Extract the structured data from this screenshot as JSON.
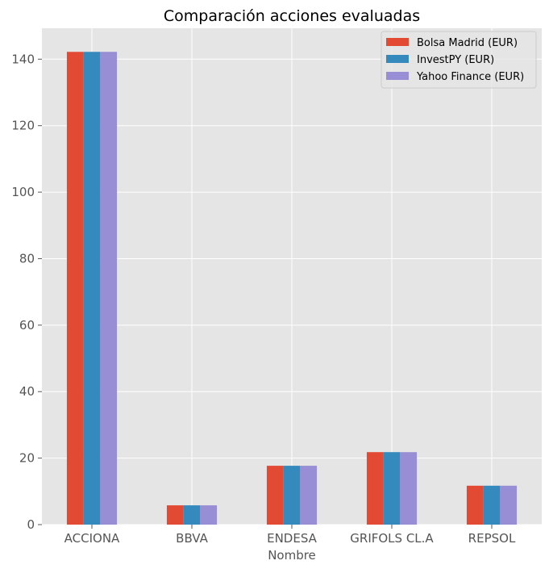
{
  "chart_data": {
    "type": "bar",
    "title": "Comparación acciones evaluadas",
    "xlabel": "Nombre",
    "ylabel": "",
    "categories": [
      "ACCIONA",
      "BBVA",
      "ENDESA",
      "GRIFOLS CL.A",
      "REPSOL"
    ],
    "series": [
      {
        "name": "Bolsa Madrid (EUR)",
        "color": "#E24A33",
        "values": [
          142.2,
          5.8,
          17.7,
          21.8,
          11.7
        ]
      },
      {
        "name": "InvestPY (EUR)",
        "color": "#348ABD",
        "values": [
          142.2,
          5.8,
          17.7,
          21.8,
          11.7
        ]
      },
      {
        "name": "Yahoo Finance (EUR)",
        "color": "#988ED5",
        "values": [
          142.2,
          5.8,
          17.7,
          21.8,
          11.7
        ]
      }
    ],
    "ylim": [
      0,
      149.3
    ],
    "yticks": [
      0,
      20,
      40,
      60,
      80,
      100,
      120,
      140
    ],
    "grid": true,
    "legend_position": "top-right",
    "style": {
      "plot_background": "#E5E5E5",
      "grid_color": "#FFFFFF",
      "tick_color": "#555555"
    }
  }
}
